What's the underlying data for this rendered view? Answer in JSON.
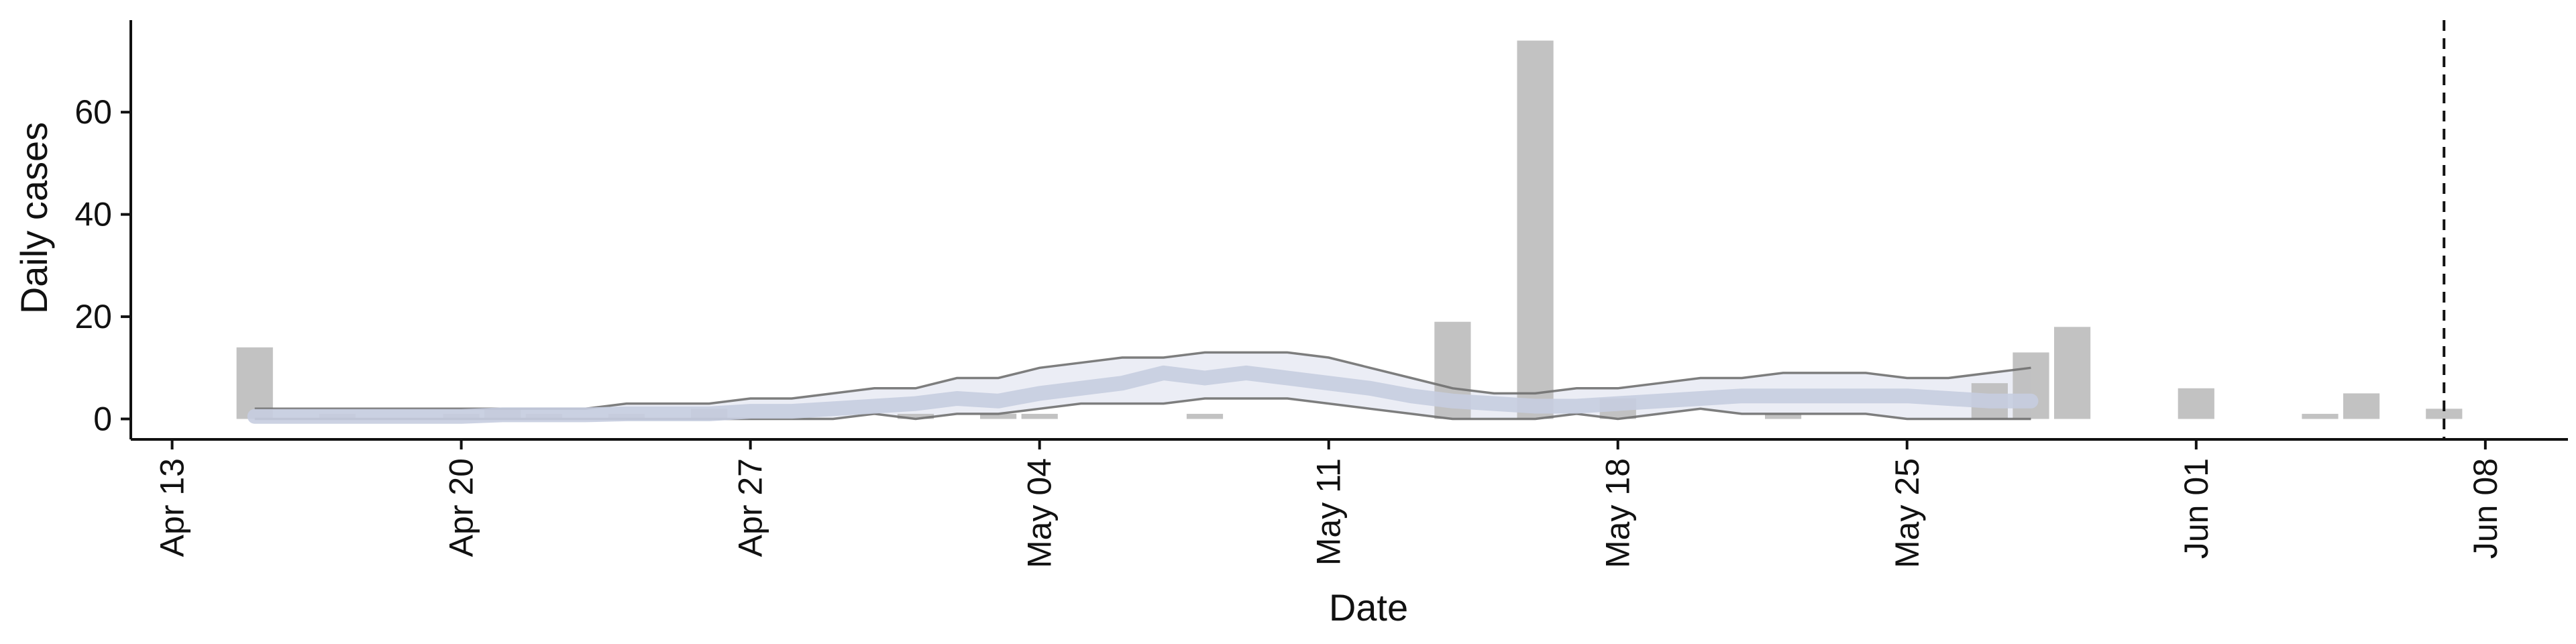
{
  "chart_data": {
    "type": "bar",
    "xlabel": "Date",
    "ylabel": "Daily cases",
    "x_type": "date",
    "xlim": [
      "2020-04-12",
      "2020-06-10"
    ],
    "ylim": [
      -4,
      78
    ],
    "x_ticks": [
      {
        "date": "2020-04-13",
        "label": "Apr 13"
      },
      {
        "date": "2020-04-20",
        "label": "Apr 20"
      },
      {
        "date": "2020-04-27",
        "label": "Apr 27"
      },
      {
        "date": "2020-05-04",
        "label": "May 04"
      },
      {
        "date": "2020-05-11",
        "label": "May 11"
      },
      {
        "date": "2020-05-18",
        "label": "May 18"
      },
      {
        "date": "2020-05-25",
        "label": "May 25"
      },
      {
        "date": "2020-06-01",
        "label": "Jun 01"
      },
      {
        "date": "2020-06-08",
        "label": "Jun 08"
      }
    ],
    "y_ticks": [
      0,
      20,
      40,
      60
    ],
    "grid": false,
    "colors": {
      "bars": "#bdbdbd",
      "median_line": "#c6cde0",
      "ci_band": "#e8eaf3",
      "ci_outline": "#707070",
      "vline": "#111111"
    },
    "bars": [
      {
        "date": "2020-04-15",
        "value": 14
      },
      {
        "date": "2020-04-17",
        "value": 1
      },
      {
        "date": "2020-04-20",
        "value": 1
      },
      {
        "date": "2020-04-21",
        "value": 2
      },
      {
        "date": "2020-04-22",
        "value": 1
      },
      {
        "date": "2020-04-24",
        "value": 1
      },
      {
        "date": "2020-04-26",
        "value": 2
      },
      {
        "date": "2020-05-01",
        "value": 1
      },
      {
        "date": "2020-05-03",
        "value": 1
      },
      {
        "date": "2020-05-04",
        "value": 1
      },
      {
        "date": "2020-05-08",
        "value": 1
      },
      {
        "date": "2020-05-14",
        "value": 19
      },
      {
        "date": "2020-05-16",
        "value": 74
      },
      {
        "date": "2020-05-18",
        "value": 4
      },
      {
        "date": "2020-05-22",
        "value": 1
      },
      {
        "date": "2020-05-27",
        "value": 7
      },
      {
        "date": "2020-05-28",
        "value": 13
      },
      {
        "date": "2020-05-29",
        "value": 18
      },
      {
        "date": "2020-06-01",
        "value": 6
      },
      {
        "date": "2020-06-04",
        "value": 1
      },
      {
        "date": "2020-06-05",
        "value": 5
      },
      {
        "date": "2020-06-07",
        "value": 2
      }
    ],
    "estimate": {
      "dates": [
        "2020-04-15",
        "2020-04-16",
        "2020-04-17",
        "2020-04-18",
        "2020-04-19",
        "2020-04-20",
        "2020-04-21",
        "2020-04-22",
        "2020-04-23",
        "2020-04-24",
        "2020-04-25",
        "2020-04-26",
        "2020-04-27",
        "2020-04-28",
        "2020-04-29",
        "2020-04-30",
        "2020-05-01",
        "2020-05-02",
        "2020-05-03",
        "2020-05-04",
        "2020-05-05",
        "2020-05-06",
        "2020-05-07",
        "2020-05-08",
        "2020-05-09",
        "2020-05-10",
        "2020-05-11",
        "2020-05-12",
        "2020-05-13",
        "2020-05-14",
        "2020-05-15",
        "2020-05-16",
        "2020-05-17",
        "2020-05-18",
        "2020-05-19",
        "2020-05-20",
        "2020-05-21",
        "2020-05-22",
        "2020-05-23",
        "2020-05-24",
        "2020-05-25",
        "2020-05-26",
        "2020-05-27",
        "2020-05-28"
      ],
      "median": [
        0.5,
        0.5,
        0.5,
        0.5,
        0.5,
        0.5,
        0.8,
        0.8,
        0.8,
        1,
        1,
        1,
        1.5,
        1.5,
        2,
        2.5,
        3,
        4,
        3.5,
        5,
        6,
        7,
        9,
        8,
        9,
        8,
        7,
        6,
        4.5,
        3.5,
        3,
        2.5,
        2.5,
        3,
        3.5,
        4,
        4.5,
        4.5,
        4.5,
        4.5,
        4.5,
        4,
        3.5,
        3.5
      ],
      "upper": [
        2,
        2,
        2,
        2,
        2,
        2,
        2,
        2,
        2,
        3,
        3,
        3,
        4,
        4,
        5,
        6,
        6,
        8,
        8,
        10,
        11,
        12,
        12,
        13,
        13,
        13,
        12,
        10,
        8,
        6,
        5,
        5,
        6,
        6,
        7,
        8,
        8,
        9,
        9,
        9,
        8,
        8,
        9,
        10
      ],
      "lower": [
        0,
        0,
        0,
        0,
        0,
        0,
        0,
        0,
        0,
        0,
        0,
        0,
        0,
        0,
        0,
        1,
        0,
        1,
        1,
        2,
        3,
        3,
        3,
        4,
        4,
        4,
        3,
        2,
        1,
        0,
        0,
        0,
        1,
        0,
        1,
        2,
        1,
        1,
        1,
        1,
        0,
        0,
        0,
        0
      ]
    },
    "vline_date": "2020-06-07"
  }
}
